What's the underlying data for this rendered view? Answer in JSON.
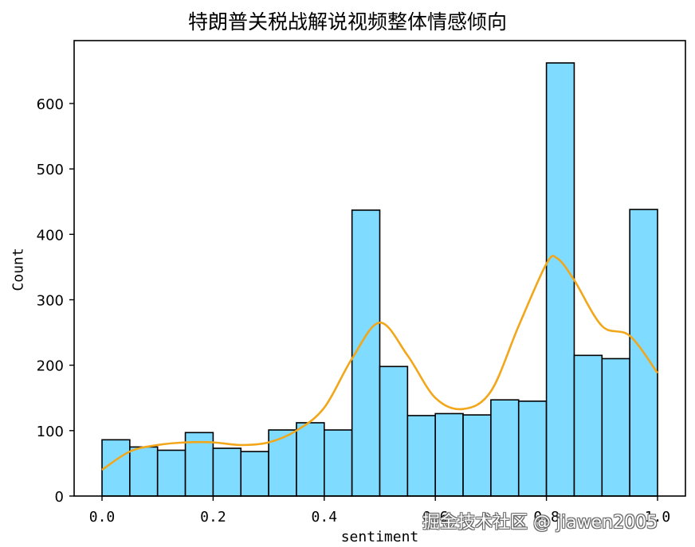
{
  "chart_data": {
    "type": "bar",
    "subtype": "histogram_with_kde",
    "title": "特朗普关税战解说视频整体情感倾向",
    "xlabel": "sentiment",
    "ylabel": "Count",
    "xlim": [
      -0.05,
      1.05
    ],
    "ylim": [
      0,
      690
    ],
    "grid": false,
    "legend": null,
    "xticks": [
      0.0,
      0.2,
      0.4,
      0.6,
      0.8,
      1.0
    ],
    "xtick_labels": [
      "0.0",
      "0.2",
      "0.4",
      "0.6",
      "0.8",
      "1.0"
    ],
    "yticks": [
      0,
      100,
      200,
      300,
      400,
      500,
      600
    ],
    "ytick_labels": [
      "0",
      "100",
      "200",
      "300",
      "400",
      "500",
      "600"
    ],
    "bin_edges": [
      0.0,
      0.05,
      0.1,
      0.15,
      0.2,
      0.25,
      0.3,
      0.35,
      0.4,
      0.45,
      0.5,
      0.55,
      0.6,
      0.65,
      0.7,
      0.75,
      0.8,
      0.85,
      0.9,
      0.95,
      1.0
    ],
    "categories": [
      "0.00-0.05",
      "0.05-0.10",
      "0.10-0.15",
      "0.15-0.20",
      "0.20-0.25",
      "0.25-0.30",
      "0.30-0.35",
      "0.35-0.40",
      "0.40-0.45",
      "0.45-0.50",
      "0.50-0.55",
      "0.55-0.60",
      "0.60-0.65",
      "0.65-0.70",
      "0.70-0.75",
      "0.75-0.80",
      "0.80-0.85",
      "0.85-0.90",
      "0.90-0.95",
      "0.95-1.00"
    ],
    "values": [
      86,
      75,
      70,
      97,
      73,
      68,
      101,
      112,
      101,
      437,
      198,
      123,
      126,
      124,
      147,
      145,
      662,
      215,
      210,
      438
    ],
    "kde": {
      "x": [
        0.0,
        0.05,
        0.1,
        0.15,
        0.2,
        0.25,
        0.3,
        0.35,
        0.4,
        0.45,
        0.5,
        0.55,
        0.6,
        0.65,
        0.7,
        0.75,
        0.8,
        0.82,
        0.85,
        0.9,
        0.95,
        1.0
      ],
      "y": [
        40,
        68,
        78,
        82,
        82,
        78,
        82,
        100,
        135,
        210,
        265,
        215,
        150,
        133,
        160,
        260,
        355,
        363,
        330,
        260,
        245,
        188
      ]
    },
    "colors": {
      "bar_fill": "#7fdbff",
      "bar_edge": "#000000",
      "kde_line": "#f2a71b"
    }
  },
  "watermark": "掘金技术社区 @ jiawen2005"
}
